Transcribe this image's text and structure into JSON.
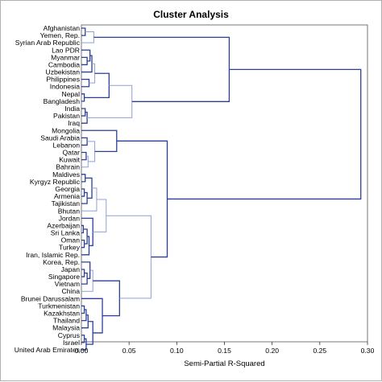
{
  "chart_data": {
    "type": "dendrogram",
    "title": "Cluster Analysis",
    "xlabel": "Semi-Partial R-Squared",
    "xlim": [
      0.0,
      0.3
    ],
    "xticks": [
      "0.00",
      "0.05",
      "0.10",
      "0.15",
      "0.20",
      "0.25",
      "0.30"
    ],
    "xtick_values": [
      0.0,
      0.05,
      0.1,
      0.15,
      0.2,
      0.25,
      0.3
    ],
    "colors": {
      "main": "#2b3f99",
      "light": "#8fa0d8",
      "axis": "#333333"
    },
    "leaves": [
      "Afghanistan",
      "Yemen, Rep.",
      "Syrian Arab Republic",
      "Lao PDR",
      "Myanmar",
      "Cambodia",
      "Uzbekistan",
      "Philippines",
      "Indonesia",
      "Nepal",
      "Bangladesh",
      "India",
      "Pakistan",
      "Iraq",
      "Mongolia",
      "Saudi Arabia",
      "Lebanon",
      "Qatar",
      "Kuwait",
      "Bahrain",
      "Maldives",
      "Kyrgyz Republic",
      "Georgia",
      "Armenia",
      "Tajikistan",
      "Bhutan",
      "Jordan",
      "Azerbaijan",
      "Sri Lanka",
      "Oman",
      "Turkey",
      "Iran, Islamic Rep.",
      "Korea, Rep.",
      "Japan",
      "Singapore",
      "Vietnam",
      "China",
      "Brunei Darussalam",
      "Turkmenistan",
      "Kazakhstan",
      "Thailand",
      "Malaysia",
      "Cyprus",
      "Israel",
      "United Arab Emirates"
    ],
    "merges": [
      {
        "a": "L0",
        "b": "L1",
        "h": 0.004,
        "c": "main"
      },
      {
        "a": "M0",
        "b": "L2",
        "h": 0.013,
        "c": "light"
      },
      {
        "a": "L4",
        "b": "L5",
        "h": 0.006,
        "c": "main"
      },
      {
        "a": "L3",
        "b": "M2",
        "h": 0.009,
        "c": "main"
      },
      {
        "a": "M3",
        "b": "L6",
        "h": 0.011,
        "c": "main"
      },
      {
        "a": "L7",
        "b": "L8",
        "h": 0.008,
        "c": "main"
      },
      {
        "a": "M4",
        "b": "M5",
        "h": 0.014,
        "c": "light"
      },
      {
        "a": "L9",
        "b": "L10",
        "h": 0.003,
        "c": "main"
      },
      {
        "a": "M6",
        "b": "M7",
        "h": 0.029,
        "c": "main"
      },
      {
        "a": "L11",
        "b": "L12",
        "h": 0.004,
        "c": "main"
      },
      {
        "a": "M9",
        "b": "L13",
        "h": 0.006,
        "c": "main"
      },
      {
        "a": "M8",
        "b": "M10",
        "h": 0.053,
        "c": "light"
      },
      {
        "a": "M1",
        "b": "M11",
        "h": 0.155,
        "c": "main"
      },
      {
        "a": "L15",
        "b": "L16",
        "h": 0.006,
        "c": "main"
      },
      {
        "a": "L17",
        "b": "L18",
        "h": 0.005,
        "c": "main"
      },
      {
        "a": "M14",
        "b": "L19",
        "h": 0.007,
        "c": "light"
      },
      {
        "a": "M13",
        "b": "M15",
        "h": 0.014,
        "c": "light"
      },
      {
        "a": "L14",
        "b": "M16",
        "h": 0.037,
        "c": "main"
      },
      {
        "a": "L20",
        "b": "L21",
        "h": 0.004,
        "c": "main"
      },
      {
        "a": "L22",
        "b": "L23",
        "h": 0.003,
        "c": "main"
      },
      {
        "a": "M19",
        "b": "L24",
        "h": 0.006,
        "c": "main"
      },
      {
        "a": "M18",
        "b": "M20",
        "h": 0.011,
        "c": "main"
      },
      {
        "a": "M21",
        "b": "L25",
        "h": 0.016,
        "c": "light"
      },
      {
        "a": "L27",
        "b": "L28",
        "h": 0.002,
        "c": "main"
      },
      {
        "a": "L29",
        "b": "L30",
        "h": 0.003,
        "c": "main"
      },
      {
        "a": "M23",
        "b": "M24",
        "h": 0.006,
        "c": "main"
      },
      {
        "a": "M25",
        "b": "L31",
        "h": 0.008,
        "c": "main"
      },
      {
        "a": "L26",
        "b": "M26",
        "h": 0.012,
        "c": "main"
      },
      {
        "a": "M22",
        "b": "M27",
        "h": 0.026,
        "c": "light"
      },
      {
        "a": "L33",
        "b": "L34",
        "h": 0.003,
        "c": "main"
      },
      {
        "a": "M29",
        "b": "L35",
        "h": 0.006,
        "c": "main"
      },
      {
        "a": "L32",
        "b": "M30",
        "h": 0.009,
        "c": "main"
      },
      {
        "a": "M31",
        "b": "L36",
        "h": 0.012,
        "c": "light"
      },
      {
        "a": "L38",
        "b": "L39",
        "h": 0.003,
        "c": "main"
      },
      {
        "a": "M33",
        "b": "L40",
        "h": 0.005,
        "c": "main"
      },
      {
        "a": "M34",
        "b": "L41",
        "h": 0.007,
        "c": "main"
      },
      {
        "a": "L42",
        "b": "L43",
        "h": 0.003,
        "c": "main"
      },
      {
        "a": "M36",
        "b": "L44",
        "h": 0.005,
        "c": "main"
      },
      {
        "a": "M35",
        "b": "M37",
        "h": 0.012,
        "c": "main"
      },
      {
        "a": "L37",
        "b": "M38",
        "h": 0.022,
        "c": "main"
      },
      {
        "a": "M32",
        "b": "M39",
        "h": 0.04,
        "c": "main"
      },
      {
        "a": "M28",
        "b": "M40",
        "h": 0.073,
        "c": "light"
      },
      {
        "a": "M17",
        "b": "M41",
        "h": 0.09,
        "c": "main"
      },
      {
        "a": "M12",
        "b": "M42",
        "h": 0.293,
        "c": "main"
      }
    ]
  }
}
